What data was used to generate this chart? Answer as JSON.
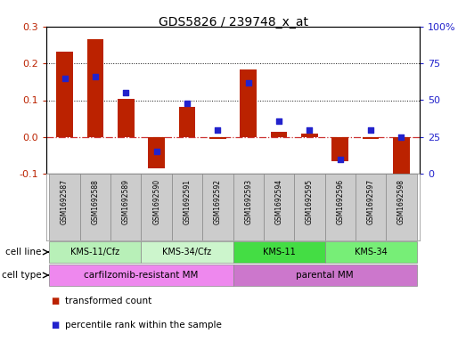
{
  "title": "GDS5826 / 239748_x_at",
  "samples": [
    "GSM1692587",
    "GSM1692588",
    "GSM1692589",
    "GSM1692590",
    "GSM1692591",
    "GSM1692592",
    "GSM1692593",
    "GSM1692594",
    "GSM1692595",
    "GSM1692596",
    "GSM1692597",
    "GSM1692598"
  ],
  "transformed_count": [
    0.232,
    0.265,
    0.104,
    -0.085,
    0.082,
    -0.005,
    0.183,
    0.013,
    0.008,
    -0.065,
    -0.005,
    -0.102
  ],
  "percentile_rank": [
    65,
    66,
    55,
    15,
    48,
    30,
    62,
    36,
    30,
    10,
    30,
    25
  ],
  "cell_lines": [
    {
      "label": "KMS-11/Cfz",
      "start": 0,
      "end": 3,
      "color": "#b8f0b8"
    },
    {
      "label": "KMS-34/Cfz",
      "start": 3,
      "end": 6,
      "color": "#ccf5cc"
    },
    {
      "label": "KMS-11",
      "start": 6,
      "end": 9,
      "color": "#44dd44"
    },
    {
      "label": "KMS-34",
      "start": 9,
      "end": 12,
      "color": "#77ee77"
    }
  ],
  "cell_types": [
    {
      "label": "carfilzomib-resistant MM",
      "start": 0,
      "end": 6,
      "color": "#ee88ee"
    },
    {
      "label": "parental MM",
      "start": 6,
      "end": 12,
      "color": "#cc77cc"
    }
  ],
  "bar_color": "#bb2200",
  "dot_color": "#2222cc",
  "left_ylim": [
    -0.1,
    0.3
  ],
  "right_ylim": [
    0,
    100
  ],
  "left_yticks": [
    -0.1,
    0.0,
    0.1,
    0.2,
    0.3
  ],
  "right_yticks": [
    0,
    25,
    50,
    75,
    100
  ],
  "right_yticklabels": [
    "0",
    "25",
    "50",
    "75",
    "100%"
  ],
  "hline_color": "#cc3333",
  "grid_color": "#111111",
  "gsm_bg": "#cccccc",
  "legend_items": [
    {
      "label": "transformed count",
      "color": "#bb2200"
    },
    {
      "label": "percentile rank within the sample",
      "color": "#2222cc"
    }
  ],
  "border_color": "#888888"
}
